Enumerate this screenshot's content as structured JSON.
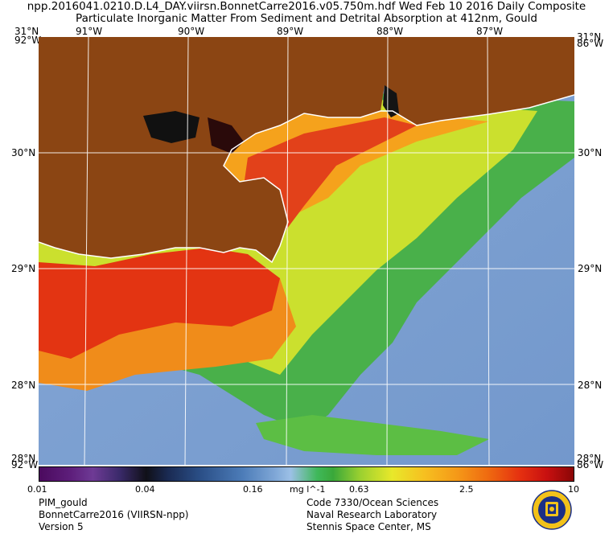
{
  "title": {
    "line1": "npp.2016041.0210.D.L4_DAY.viirsn.BonnetCarre2016.v05.750m.hdf    Wed Feb 10 2016 Daily Composite",
    "line2": "Particulate Inorganic Matter From Sediment and Detrital Absorption at 412nm, Gould"
  },
  "map": {
    "lon_ticks": [
      "91°W",
      "90°W",
      "89°W",
      "88°W",
      "87°W"
    ],
    "lat_ticks": [
      "30°N",
      "29°N",
      "28°N"
    ],
    "corner_labels": {
      "top_left_lat": "31°N",
      "top_left_lon": "92°W",
      "top_right_lat": "31°N",
      "top_right_lon": "86°W",
      "bottom_left_lat": "28°N",
      "bottom_left_lon": "92°W",
      "bottom_right_lat": "28°N",
      "bottom_right_lon": "86°W"
    },
    "colors": {
      "land": "#8b4513",
      "coast": "#ffffff",
      "clear_water": "#7fa3d4"
    }
  },
  "colorbar": {
    "labels": [
      "0.01",
      "0.04",
      "0.16",
      "0.63",
      "2.5",
      "10"
    ],
    "unit": "mg l^-1",
    "scale": "log"
  },
  "info_left": [
    "PIM_gould",
    "BonnetCarre2016 (VIIRSN-npp)",
    "Version 5"
  ],
  "info_right": [
    "Code 7330/Ocean Sciences",
    "Naval Research Laboratory",
    "Stennis Space Center, MS"
  ]
}
